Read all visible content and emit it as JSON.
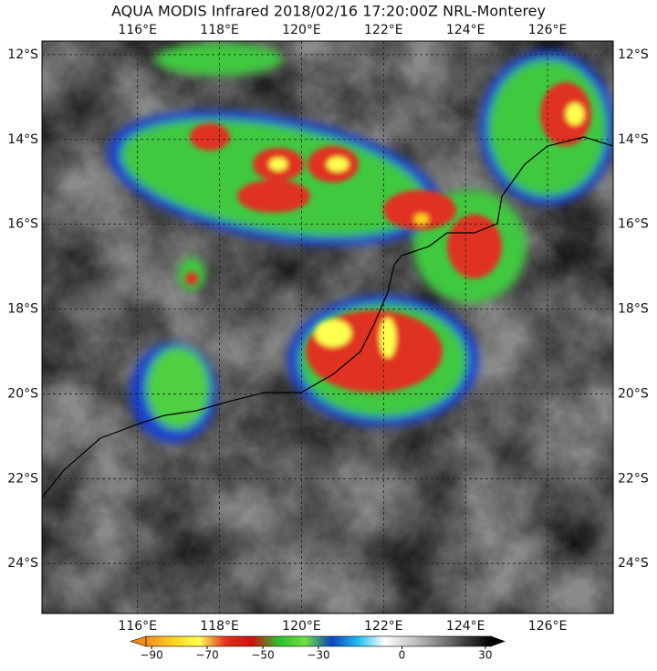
{
  "title": "AQUA MODIS Infrared 2018/02/16 17:20:00Z NRL-Monterey",
  "map": {
    "xlim": [
      113.67,
      127.6
    ],
    "ylim": [
      -25.18,
      -11.68
    ],
    "grid": true,
    "xticks": [
      {
        "value": 116,
        "label": "116°E"
      },
      {
        "value": 118,
        "label": "118°E"
      },
      {
        "value": 120,
        "label": "120°E"
      },
      {
        "value": 122,
        "label": "122°E"
      },
      {
        "value": 124,
        "label": "124°E"
      },
      {
        "value": 126,
        "label": "126°E"
      }
    ],
    "yticks": [
      {
        "value": -12,
        "label": "12°S"
      },
      {
        "value": -14,
        "label": "14°S"
      },
      {
        "value": -16,
        "label": "16°S"
      },
      {
        "value": -18,
        "label": "18°S"
      },
      {
        "value": -20,
        "label": "20°S"
      },
      {
        "value": -22,
        "label": "22°S"
      },
      {
        "value": -24,
        "label": "24°S"
      }
    ]
  },
  "colorbar": {
    "lim": [
      -92,
      32
    ],
    "ticks": [
      {
        "value": -90,
        "label": "−90"
      },
      {
        "value": -70,
        "label": "−70"
      },
      {
        "value": -50,
        "label": "−50"
      },
      {
        "value": -30,
        "label": "−30"
      },
      0,
      30
    ],
    "colors": [
      "#f08c1e",
      "#ffd21e",
      "#ffff50",
      "#e03020",
      "#d01010",
      "#30c030",
      "#70e040",
      "#1040c0",
      "#20c0f0",
      "#ffffff",
      "#c8c8c8",
      "#888888",
      "#404040",
      "#000000"
    ]
  }
}
